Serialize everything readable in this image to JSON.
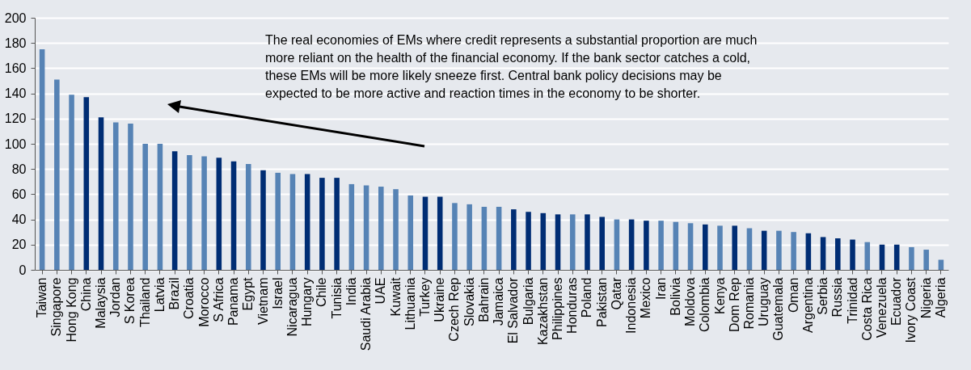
{
  "chart_data": {
    "type": "bar",
    "categories": [
      "Taiwan",
      "Singapore",
      "Hong Kong",
      "China",
      "Malaysia",
      "Jordan",
      "S Korea",
      "Thailand",
      "Latvia",
      "Brazil",
      "Croatia",
      "Morocco",
      "S Africa",
      "Panama",
      "Egypt",
      "Vietnam",
      "Israel",
      "Nicaragua",
      "Hungary",
      "Chile",
      "Tunisia",
      "India",
      "Saudi Arabia",
      "UAE",
      "Kuwait",
      "Lithuania",
      "Turkey",
      "Ukraine",
      "Czech Rep",
      "Slovakia",
      "Bahrain",
      "Jamaica",
      "El Salvador",
      "Bulgaria",
      "Kazakhstan",
      "Philippines",
      "Honduras",
      "Poland",
      "Pakistan",
      "Qatar",
      "Indonesia",
      "Mexico",
      "Iran",
      "Bolivia",
      "Moldova",
      "Colombia",
      "Kenya",
      "Dom Rep",
      "Romania",
      "Uruguay",
      "Guatemala",
      "Oman",
      "Argentina",
      "Serbia",
      "Russia",
      "Trinidad",
      "Costa Rica",
      "Venezuela",
      "Ecuador",
      "Ivory Coast",
      "Nigeria",
      "Algeria"
    ],
    "values": [
      175,
      151,
      139,
      137,
      121,
      117,
      116,
      100,
      100,
      94,
      91,
      90,
      89,
      86,
      84,
      79,
      77,
      76,
      76,
      73,
      73,
      68,
      67,
      66,
      64,
      59,
      58,
      58,
      53,
      52,
      50,
      50,
      48,
      46,
      45,
      44,
      44,
      44,
      42,
      40,
      40,
      39,
      39,
      38,
      37,
      36,
      35,
      35,
      33,
      31,
      31,
      30,
      29,
      26,
      25,
      24,
      22,
      20,
      20,
      18,
      16,
      8
    ],
    "colors": [
      "#5683b5",
      "#5683b5",
      "#5683b5",
      "#002d74",
      "#002d74",
      "#5683b5",
      "#5683b5",
      "#5683b5",
      "#5683b5",
      "#002d74",
      "#5683b5",
      "#5683b5",
      "#002d74",
      "#002d74",
      "#5683b5",
      "#002d74",
      "#5683b5",
      "#5683b5",
      "#002d74",
      "#002d74",
      "#002d74",
      "#5683b5",
      "#5683b5",
      "#5683b5",
      "#5683b5",
      "#5683b5",
      "#002d74",
      "#002d74",
      "#5683b5",
      "#5683b5",
      "#5683b5",
      "#5683b5",
      "#002d74",
      "#002d74",
      "#002d74",
      "#002d74",
      "#5683b5",
      "#002d74",
      "#002d74",
      "#5683b5",
      "#002d74",
      "#002d74",
      "#5683b5",
      "#5683b5",
      "#5683b5",
      "#002d74",
      "#5683b5",
      "#002d74",
      "#5683b5",
      "#002d74",
      "#5683b5",
      "#5683b5",
      "#002d74",
      "#002d74",
      "#002d74",
      "#002d74",
      "#5683b5",
      "#002d74",
      "#002d74",
      "#5683b5",
      "#5683b5",
      "#5683b5"
    ],
    "ylim": [
      0,
      200
    ],
    "yticks": [
      0,
      20,
      40,
      60,
      80,
      100,
      120,
      140,
      160,
      180,
      200
    ],
    "grid": "y",
    "annotations": [
      "The real economies of EMs where credit represents a substantial proportion are much more reliant on the health of the financial economy. If the bank sector catches a cold, these EMs will be more likely sneeze first. Central bank policy decisions may be expected to be more active and reaction times in the economy to be shorter."
    ]
  }
}
